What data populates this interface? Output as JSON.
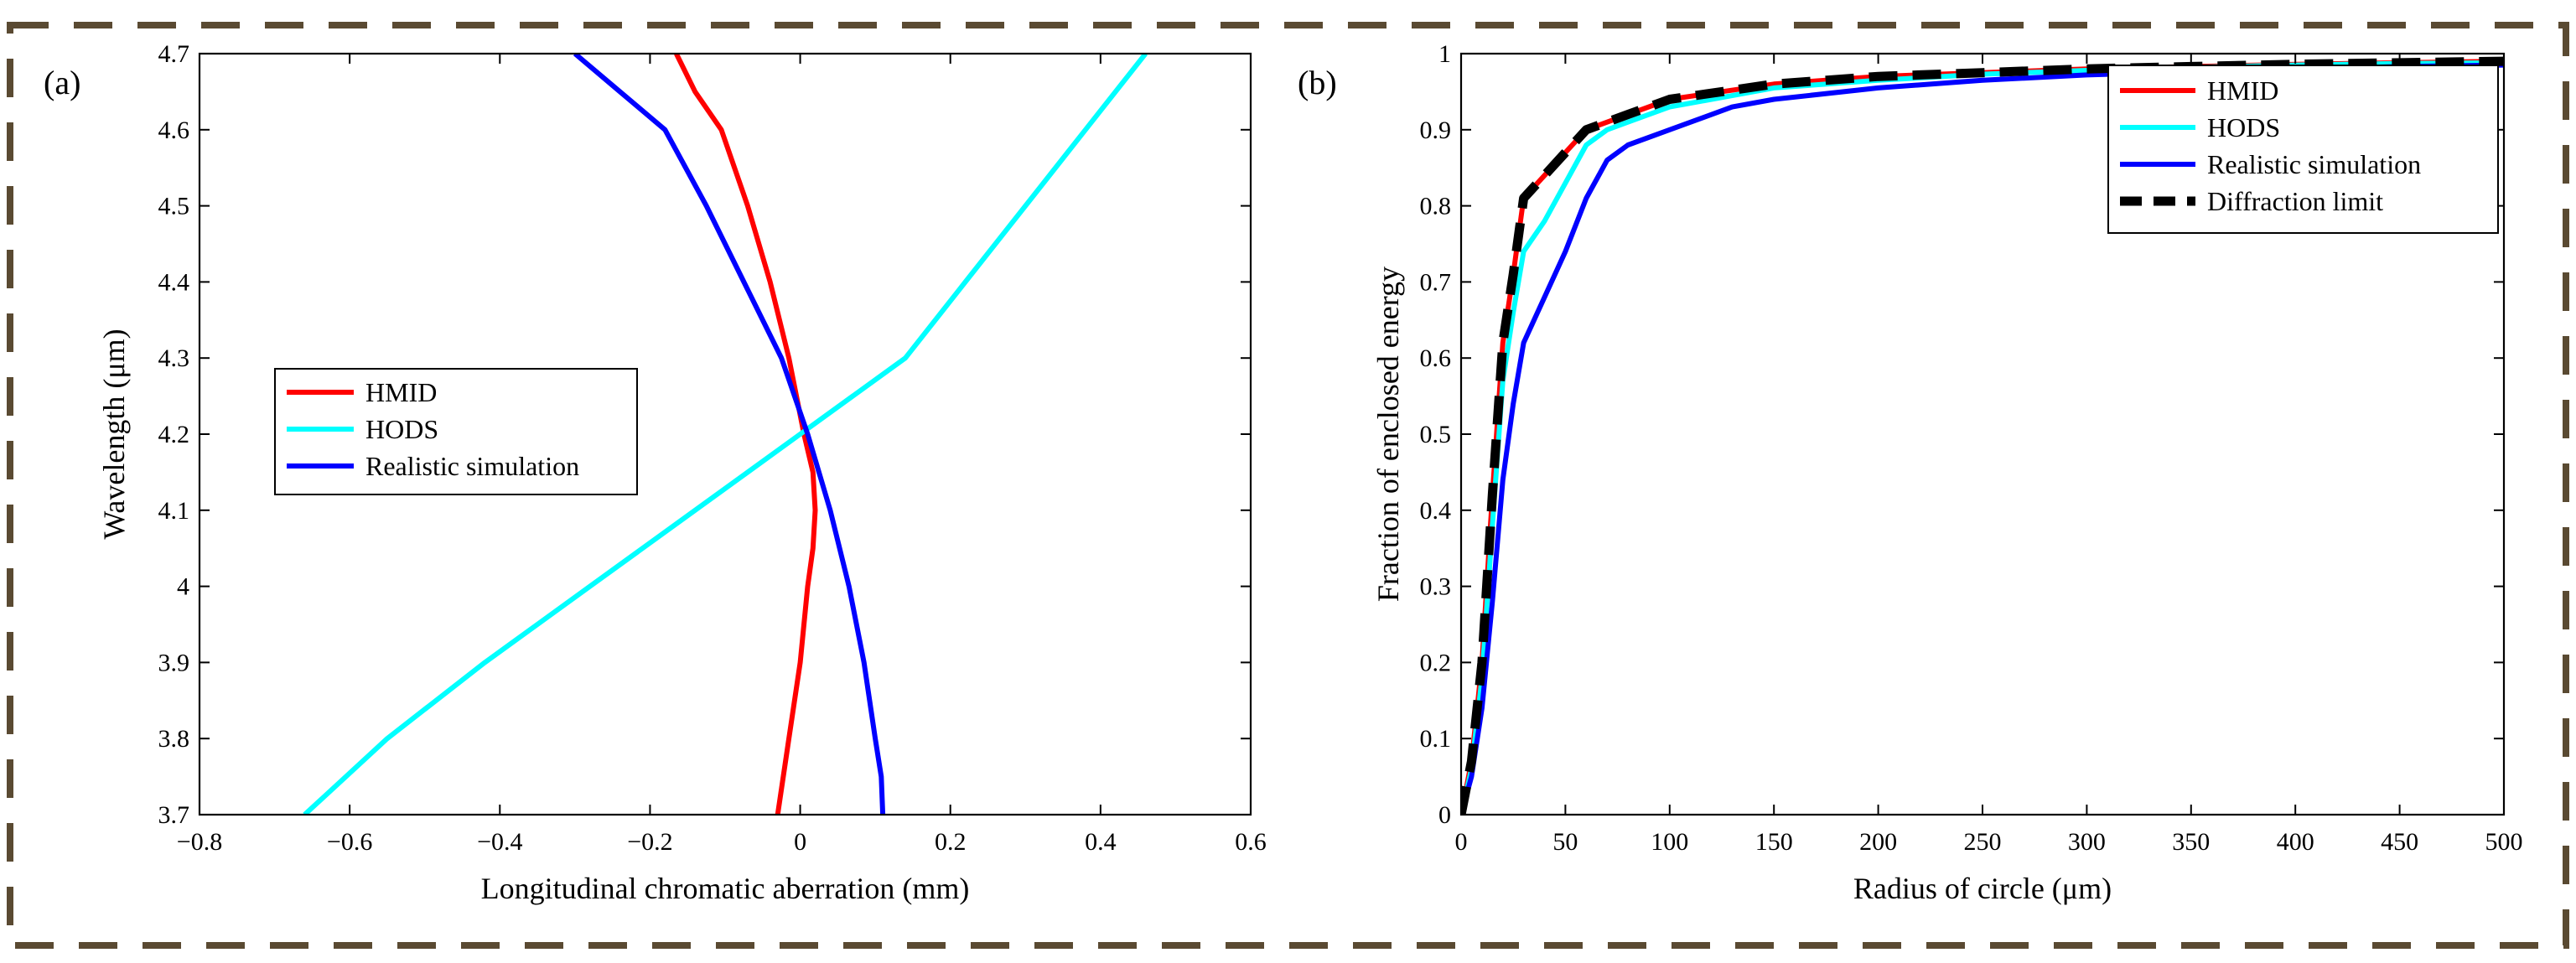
{
  "colors": {
    "border": "#5a4a32",
    "HMID": "#ff0000",
    "HODS": "#00ffff",
    "Realistic simulation": "#0000ff",
    "Diffraction limit": "#000000"
  },
  "chart_data": [
    {
      "type": "line",
      "panel_label": "(a)",
      "xlabel": "Longitudinal chromatic aberration (mm)",
      "ylabel": "Wavelength (μm)",
      "xlim": [
        -0.8,
        0.6
      ],
      "ylim": [
        3.7,
        4.7
      ],
      "xticks": [
        -0.8,
        -0.6,
        -0.4,
        -0.2,
        0,
        0.2,
        0.4,
        0.6
      ],
      "xtick_labels": [
        "−0.8",
        "−0.6",
        "−0.4",
        "−0.2",
        "0",
        "0.2",
        "0.4",
        "0.6"
      ],
      "yticks": [
        3.7,
        3.8,
        3.9,
        4.0,
        4.1,
        4.2,
        4.3,
        4.4,
        4.5,
        4.6,
        4.7
      ],
      "ytick_labels": [
        "3.7",
        "3.8",
        "3.9",
        "4",
        "4.1",
        "4.2",
        "4.3",
        "4.4",
        "4.5",
        "4.6",
        "4.7"
      ],
      "legend_position": "center-left",
      "grid": false,
      "series": [
        {
          "name": "HMID",
          "color": "#ff0000",
          "x": [
            -0.03,
            -0.015,
            0,
            0.01,
            0.017,
            0.02,
            0.017,
            0.005,
            -0.015,
            -0.04,
            -0.07,
            -0.105,
            -0.14,
            -0.165
          ],
          "y": [
            3.7,
            3.8,
            3.9,
            4.0,
            4.05,
            4.1,
            4.15,
            4.2,
            4.3,
            4.4,
            4.5,
            4.6,
            4.65,
            4.7
          ]
        },
        {
          "name": "HODS",
          "color": "#00ffff",
          "x": [
            -0.66,
            -0.55,
            -0.42,
            -0.28,
            -0.14,
            -0.07,
            0,
            0.07,
            0.14,
            0.22,
            0.3,
            0.38,
            0.46
          ],
          "y": [
            3.7,
            3.8,
            3.9,
            4.0,
            4.1,
            4.15,
            4.2,
            4.25,
            4.3,
            4.4,
            4.5,
            4.6,
            4.7
          ]
        },
        {
          "name": "Realistic simulation",
          "color": "#0000ff",
          "x": [
            0.11,
            0.108,
            0.1,
            0.085,
            0.065,
            0.04,
            0.01,
            -0.025,
            -0.075,
            -0.125,
            -0.18,
            -0.24,
            -0.3
          ],
          "y": [
            3.7,
            3.75,
            3.8,
            3.9,
            4.0,
            4.1,
            4.2,
            4.3,
            4.4,
            4.5,
            4.6,
            4.65,
            4.7
          ]
        }
      ]
    },
    {
      "type": "line",
      "panel_label": "(b)",
      "xlabel": "Radius of circle (μm)",
      "ylabel": "Fraction of enclosed energy",
      "xlim": [
        0,
        500
      ],
      "ylim": [
        0,
        1
      ],
      "xticks": [
        0,
        50,
        100,
        150,
        200,
        250,
        300,
        350,
        400,
        450,
        500
      ],
      "xtick_labels": [
        "0",
        "50",
        "100",
        "150",
        "200",
        "250",
        "300",
        "350",
        "400",
        "450",
        "500"
      ],
      "yticks": [
        0,
        0.1,
        0.2,
        0.3,
        0.4,
        0.5,
        0.6,
        0.7,
        0.8,
        0.9,
        1
      ],
      "ytick_labels": [
        "0",
        "0.1",
        "0.2",
        "0.3",
        "0.4",
        "0.5",
        "0.6",
        "0.7",
        "0.8",
        "0.9",
        "1"
      ],
      "legend_position": "top-right",
      "grid": false,
      "series": [
        {
          "name": "HMID",
          "color": "#ff0000",
          "x": [
            0,
            5,
            10,
            15,
            20,
            25,
            30,
            40,
            50,
            60,
            70,
            80,
            100,
            150,
            200,
            250,
            300,
            350,
            400,
            450,
            500
          ],
          "y": [
            0,
            0.07,
            0.2,
            0.42,
            0.62,
            0.71,
            0.81,
            0.84,
            0.87,
            0.9,
            0.91,
            0.92,
            0.94,
            0.96,
            0.97,
            0.975,
            0.98,
            0.983,
            0.986,
            0.988,
            0.99
          ]
        },
        {
          "name": "HODS",
          "color": "#00ffff",
          "x": [
            0,
            5,
            10,
            15,
            20,
            25,
            30,
            40,
            50,
            60,
            70,
            80,
            100,
            150,
            200,
            250,
            300,
            350,
            400,
            450,
            500
          ],
          "y": [
            0,
            0.06,
            0.18,
            0.38,
            0.57,
            0.66,
            0.74,
            0.78,
            0.83,
            0.88,
            0.9,
            0.91,
            0.93,
            0.955,
            0.965,
            0.973,
            0.978,
            0.982,
            0.985,
            0.987,
            0.988
          ]
        },
        {
          "name": "Realistic simulation",
          "color": "#0000ff",
          "x": [
            0,
            5,
            10,
            15,
            20,
            25,
            30,
            40,
            50,
            60,
            70,
            80,
            100,
            130,
            150,
            200,
            250,
            300,
            350,
            400,
            450,
            500
          ],
          "y": [
            0,
            0.05,
            0.14,
            0.28,
            0.44,
            0.54,
            0.62,
            0.68,
            0.74,
            0.81,
            0.86,
            0.88,
            0.9,
            0.93,
            0.94,
            0.955,
            0.965,
            0.972,
            0.976,
            0.98,
            0.983,
            0.985
          ]
        },
        {
          "name": "Diffraction limit",
          "color": "#000000",
          "dashed": true,
          "x": [
            0,
            5,
            10,
            15,
            20,
            25,
            30,
            40,
            50,
            60,
            70,
            80,
            100,
            150,
            200,
            250,
            300,
            350,
            400,
            450,
            500
          ],
          "y": [
            0,
            0.07,
            0.2,
            0.42,
            0.62,
            0.71,
            0.81,
            0.84,
            0.87,
            0.9,
            0.91,
            0.92,
            0.94,
            0.96,
            0.97,
            0.975,
            0.98,
            0.983,
            0.986,
            0.988,
            0.99
          ]
        }
      ]
    }
  ]
}
